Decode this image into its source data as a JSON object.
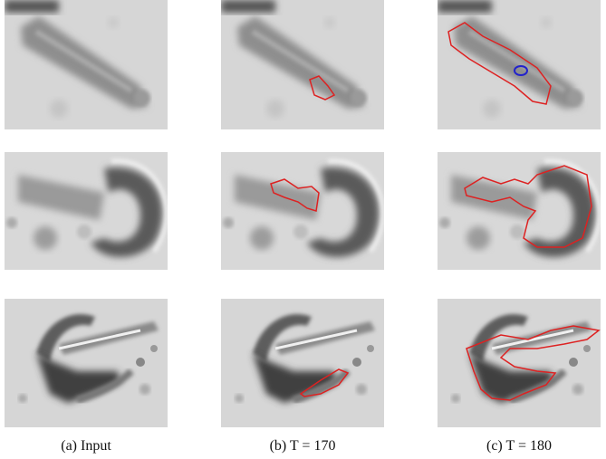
{
  "captions": [
    "(a) Input",
    "(b) T = 170",
    "(c) T = 180"
  ]
}
